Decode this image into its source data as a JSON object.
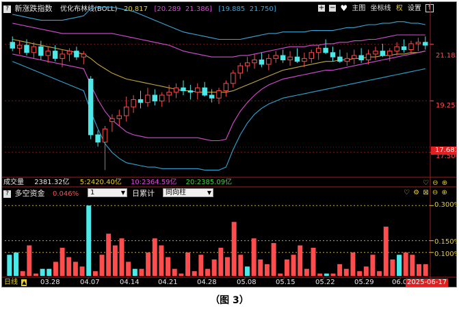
{
  "main_panel": {
    "title": "新涨跌指数",
    "indicator": "优化布林线(BOLL)",
    "mid_value": "20.817",
    "upper_value_bracket": "[20.289",
    "upper_value": "21.386]",
    "lower_value_bracket": "[19.885",
    "lower_value": "21.750]",
    "toolbar": {
      "main_chart": "主图",
      "coord": "坐标线",
      "right": "权",
      "settings": "设置"
    },
    "y_ticks": [
      "21.183",
      "19.257",
      "17.506"
    ],
    "current_price": "17.681"
  },
  "volume_strip": {
    "label": "成交量",
    "total": "2381.32亿",
    "ma5": "5:2420.40亿",
    "ma10": "10:2364.59亿",
    "ma20": "20:2385.09亿"
  },
  "sub_panel": {
    "title": "多空资金",
    "value": "0.046%",
    "select1": "1",
    "label2": "日累计",
    "select2": "同向柱",
    "y_ticks": [
      "0.300%",
      "0.150%",
      "0.100%"
    ]
  },
  "bottom_bar": {
    "period": "日线",
    "dates": [
      "03.28",
      "04.07",
      "04.14",
      "04.21",
      "04.28",
      "05.08",
      "05.15",
      "05.22",
      "05.29",
      "06.06"
    ],
    "current_date": "2025-06-17"
  },
  "caption": "（图 3）",
  "colors": {
    "up": "#ff4d4d",
    "down": "#4de8e8",
    "upper_band": "#d84cd8",
    "lower_band": "#2fa6d6",
    "mid_line": "#c8a838",
    "outer_upper": "#3aa8d8"
  },
  "chart_data": {
    "type": "candlestick",
    "candles": [
      {
        "o": 21.25,
        "h": 21.45,
        "l": 20.95,
        "c": 21.05
      },
      {
        "o": 21.05,
        "h": 21.3,
        "l": 20.85,
        "c": 21.15
      },
      {
        "o": 21.15,
        "h": 21.35,
        "l": 20.8,
        "c": 20.9
      },
      {
        "o": 20.9,
        "h": 21.25,
        "l": 20.7,
        "c": 21.1
      },
      {
        "o": 21.1,
        "h": 21.3,
        "l": 20.65,
        "c": 20.8
      },
      {
        "o": 20.8,
        "h": 21.1,
        "l": 20.55,
        "c": 20.95
      },
      {
        "o": 20.95,
        "h": 21.15,
        "l": 20.6,
        "c": 20.7
      },
      {
        "o": 20.7,
        "h": 21.0,
        "l": 20.4,
        "c": 20.85
      },
      {
        "o": 20.85,
        "h": 21.05,
        "l": 20.6,
        "c": 20.95
      },
      {
        "o": 20.95,
        "h": 21.1,
        "l": 20.65,
        "c": 20.75
      },
      {
        "o": 20.75,
        "h": 20.95,
        "l": 20.5,
        "c": 20.85
      },
      {
        "o": 20.0,
        "h": 20.1,
        "l": 17.95,
        "c": 18.1
      },
      {
        "o": 18.1,
        "h": 18.25,
        "l": 17.7,
        "c": 17.85
      },
      {
        "o": 17.85,
        "h": 18.4,
        "l": 16.9,
        "c": 18.3
      },
      {
        "o": 18.55,
        "h": 18.8,
        "l": 18.2,
        "c": 18.65
      },
      {
        "o": 18.65,
        "h": 18.95,
        "l": 18.4,
        "c": 18.75
      },
      {
        "o": 18.75,
        "h": 19.4,
        "l": 18.55,
        "c": 19.05
      },
      {
        "o": 19.05,
        "h": 19.45,
        "l": 18.85,
        "c": 19.3
      },
      {
        "o": 19.3,
        "h": 19.6,
        "l": 19.0,
        "c": 19.2
      },
      {
        "o": 19.2,
        "h": 19.7,
        "l": 19.05,
        "c": 19.45
      },
      {
        "o": 19.45,
        "h": 19.65,
        "l": 19.1,
        "c": 19.25
      },
      {
        "o": 19.25,
        "h": 19.55,
        "l": 19.05,
        "c": 19.45
      },
      {
        "o": 19.45,
        "h": 19.8,
        "l": 19.2,
        "c": 19.55
      },
      {
        "o": 19.55,
        "h": 19.85,
        "l": 19.35,
        "c": 19.7
      },
      {
        "o": 19.7,
        "h": 19.95,
        "l": 19.45,
        "c": 19.6
      },
      {
        "o": 19.6,
        "h": 19.8,
        "l": 19.3,
        "c": 19.55
      },
      {
        "o": 19.55,
        "h": 19.85,
        "l": 19.3,
        "c": 19.7
      },
      {
        "o": 19.7,
        "h": 19.9,
        "l": 19.4,
        "c": 19.45
      },
      {
        "o": 19.45,
        "h": 19.65,
        "l": 19.2,
        "c": 19.35
      },
      {
        "o": 19.35,
        "h": 19.7,
        "l": 19.15,
        "c": 19.6
      },
      {
        "o": 19.6,
        "h": 19.95,
        "l": 19.4,
        "c": 19.85
      },
      {
        "o": 19.85,
        "h": 20.3,
        "l": 19.7,
        "c": 20.2
      },
      {
        "o": 20.2,
        "h": 20.55,
        "l": 20.0,
        "c": 20.45
      },
      {
        "o": 20.45,
        "h": 20.75,
        "l": 20.25,
        "c": 20.55
      },
      {
        "o": 20.55,
        "h": 20.85,
        "l": 20.35,
        "c": 20.65
      },
      {
        "o": 20.65,
        "h": 20.9,
        "l": 20.4,
        "c": 20.5
      },
      {
        "o": 20.5,
        "h": 20.85,
        "l": 20.3,
        "c": 20.7
      },
      {
        "o": 20.7,
        "h": 20.95,
        "l": 20.55,
        "c": 20.8
      },
      {
        "o": 20.8,
        "h": 21.0,
        "l": 20.55,
        "c": 20.65
      },
      {
        "o": 20.65,
        "h": 20.95,
        "l": 20.45,
        "c": 20.75
      },
      {
        "o": 20.75,
        "h": 21.05,
        "l": 20.55,
        "c": 20.6
      },
      {
        "o": 20.6,
        "h": 20.9,
        "l": 20.4,
        "c": 20.7
      },
      {
        "o": 20.7,
        "h": 21.0,
        "l": 20.55,
        "c": 20.9
      },
      {
        "o": 20.9,
        "h": 21.15,
        "l": 20.65,
        "c": 21.05
      },
      {
        "o": 21.05,
        "h": 21.35,
        "l": 20.85,
        "c": 20.9
      },
      {
        "o": 20.9,
        "h": 21.1,
        "l": 20.6,
        "c": 20.75
      },
      {
        "o": 20.75,
        "h": 21.0,
        "l": 20.55,
        "c": 20.6
      },
      {
        "o": 20.6,
        "h": 20.9,
        "l": 20.45,
        "c": 20.7
      },
      {
        "o": 20.7,
        "h": 21.0,
        "l": 20.5,
        "c": 20.8
      },
      {
        "o": 20.8,
        "h": 21.05,
        "l": 20.55,
        "c": 20.65
      },
      {
        "o": 20.65,
        "h": 21.0,
        "l": 20.5,
        "c": 20.85
      },
      {
        "o": 20.85,
        "h": 21.1,
        "l": 20.65,
        "c": 20.95
      },
      {
        "o": 20.95,
        "h": 21.2,
        "l": 20.75,
        "c": 20.8
      },
      {
        "o": 20.8,
        "h": 21.05,
        "l": 20.6,
        "c": 20.95
      },
      {
        "o": 20.95,
        "h": 21.25,
        "l": 20.8,
        "c": 21.1
      },
      {
        "o": 21.1,
        "h": 21.35,
        "l": 20.9,
        "c": 21.0
      },
      {
        "o": 21.0,
        "h": 21.3,
        "l": 20.85,
        "c": 21.2
      },
      {
        "o": 21.2,
        "h": 21.4,
        "l": 20.95,
        "c": 21.25
      },
      {
        "o": 21.25,
        "h": 21.45,
        "l": 21.0,
        "c": 21.15
      }
    ],
    "ylim": [
      16.7,
      22.2
    ],
    "bands": {
      "outer_upper": [
        22.2,
        22.15,
        22.1,
        22.05,
        22.0,
        22.0,
        22.0,
        22.0,
        22.05,
        22.1,
        22.15,
        22.4,
        22.45,
        22.45,
        22.45,
        22.4,
        22.35,
        22.3,
        22.2,
        22.1,
        22.0,
        21.9,
        21.8,
        21.7,
        21.6,
        21.55,
        21.5,
        21.45,
        21.4,
        21.35,
        21.35,
        21.35,
        21.35,
        21.4,
        21.45,
        21.5,
        21.55,
        21.55,
        21.6,
        21.6,
        21.6,
        21.6,
        21.65,
        21.65,
        21.65,
        21.65,
        21.7,
        21.75,
        21.75,
        21.8,
        21.85,
        21.85,
        21.9,
        21.9,
        21.95,
        21.95,
        21.9,
        21.9,
        21.85
      ],
      "upper": [
        21.9,
        21.85,
        21.8,
        21.75,
        21.7,
        21.65,
        21.6,
        21.55,
        21.55,
        21.55,
        21.55,
        21.55,
        21.55,
        21.55,
        21.55,
        21.5,
        21.45,
        21.4,
        21.35,
        21.3,
        21.25,
        21.2,
        21.15,
        21.05,
        20.95,
        20.9,
        20.85,
        20.8,
        20.75,
        20.75,
        20.75,
        20.75,
        20.8,
        20.8,
        20.85,
        20.9,
        20.95,
        21.0,
        21.05,
        21.1,
        21.1,
        21.1,
        21.15,
        21.15,
        21.2,
        21.2,
        21.25,
        21.25,
        21.3,
        21.3,
        21.35,
        21.35,
        21.4,
        21.45,
        21.5,
        21.5,
        21.5,
        21.5,
        21.5
      ],
      "mid": [
        21.35,
        21.3,
        21.25,
        21.2,
        21.15,
        21.1,
        21.05,
        21.0,
        20.95,
        20.9,
        20.85,
        20.7,
        20.5,
        20.35,
        20.2,
        20.1,
        20.0,
        19.95,
        19.9,
        19.85,
        19.8,
        19.75,
        19.7,
        19.65,
        19.6,
        19.6,
        19.55,
        19.55,
        19.55,
        19.55,
        19.55,
        19.6,
        19.7,
        19.8,
        19.9,
        20.0,
        20.1,
        20.2,
        20.3,
        20.35,
        20.4,
        20.45,
        20.5,
        20.55,
        20.6,
        20.6,
        20.65,
        20.65,
        20.7,
        20.7,
        20.75,
        20.75,
        20.8,
        20.8,
        20.85,
        20.85,
        20.9,
        20.9,
        20.95
      ],
      "lower": [
        20.85,
        20.8,
        20.75,
        20.7,
        20.65,
        20.6,
        20.55,
        20.5,
        20.45,
        20.4,
        20.35,
        19.8,
        19.3,
        18.9,
        18.6,
        18.4,
        18.2,
        18.1,
        18.05,
        18.0,
        18.0,
        18.0,
        18.0,
        18.0,
        18.0,
        18.0,
        18.0,
        17.95,
        17.9,
        17.9,
        17.95,
        18.5,
        18.9,
        19.2,
        19.45,
        19.65,
        19.8,
        19.9,
        20.0,
        20.05,
        20.1,
        20.15,
        20.2,
        20.25,
        20.3,
        20.3,
        20.35,
        20.4,
        20.45,
        20.5,
        20.55,
        20.6,
        20.65,
        20.7,
        20.75,
        20.8,
        20.85,
        20.9,
        20.95
      ],
      "outer_lower": [
        20.6,
        20.5,
        20.4,
        20.3,
        20.2,
        20.1,
        20.0,
        19.9,
        19.8,
        19.7,
        19.6,
        18.9,
        18.3,
        17.8,
        17.5,
        17.3,
        17.15,
        17.1,
        17.05,
        17.0,
        17.0,
        16.95,
        16.95,
        16.95,
        16.95,
        16.95,
        16.95,
        16.9,
        16.9,
        16.9,
        17.0,
        17.6,
        18.1,
        18.5,
        18.8,
        19.0,
        19.15,
        19.25,
        19.35,
        19.4,
        19.45,
        19.5,
        19.55,
        19.6,
        19.65,
        19.7,
        19.75,
        19.8,
        19.85,
        19.9,
        19.95,
        20.0,
        20.05,
        20.1,
        20.15,
        20.2,
        20.25,
        20.3,
        20.35
      ]
    },
    "money_flow": {
      "values": [
        0.09,
        0.1,
        0.02,
        0.13,
        0.01,
        0.03,
        0.03,
        0.06,
        0.12,
        0.08,
        0.06,
        0.04,
        0.3,
        0.02,
        0.09,
        0.18,
        0.13,
        0.16,
        0.06,
        0.03,
        0.03,
        0.1,
        0.16,
        0.13,
        0.08,
        0.03,
        0.01,
        0.1,
        0.02,
        0.09,
        0.03,
        0.07,
        0.12,
        0.08,
        0.23,
        0.09,
        0.04,
        0.16,
        0.07,
        0.05,
        0.14,
        0.01,
        0.07,
        0.09,
        0.13,
        0.03,
        0.12,
        0.01,
        0.01,
        0.01,
        0.05,
        0.03,
        0.1,
        0.02,
        0.04,
        0.09,
        0.02,
        0.21,
        0.07,
        0.09,
        0.1,
        0.09,
        0.05,
        0.05
      ],
      "colors": [
        "down",
        "down",
        "up",
        "up",
        "up",
        "down",
        "down",
        "up",
        "up",
        "up",
        "up",
        "up",
        "down",
        "up",
        "up",
        "up",
        "up",
        "up",
        "up",
        "down",
        "up",
        "up",
        "up",
        "up",
        "up",
        "up",
        "up",
        "up",
        "up",
        "up",
        "up",
        "up",
        "up",
        "up",
        "up",
        "up",
        "down",
        "up",
        "up",
        "up",
        "up",
        "up",
        "up",
        "up",
        "up",
        "up",
        "up",
        "up",
        "down",
        "up",
        "up",
        "up",
        "up",
        "up",
        "up",
        "up",
        "up",
        "up",
        "up",
        "down",
        "up",
        "up",
        "up",
        "up"
      ],
      "ylim": [
        0,
        0.33
      ]
    }
  }
}
